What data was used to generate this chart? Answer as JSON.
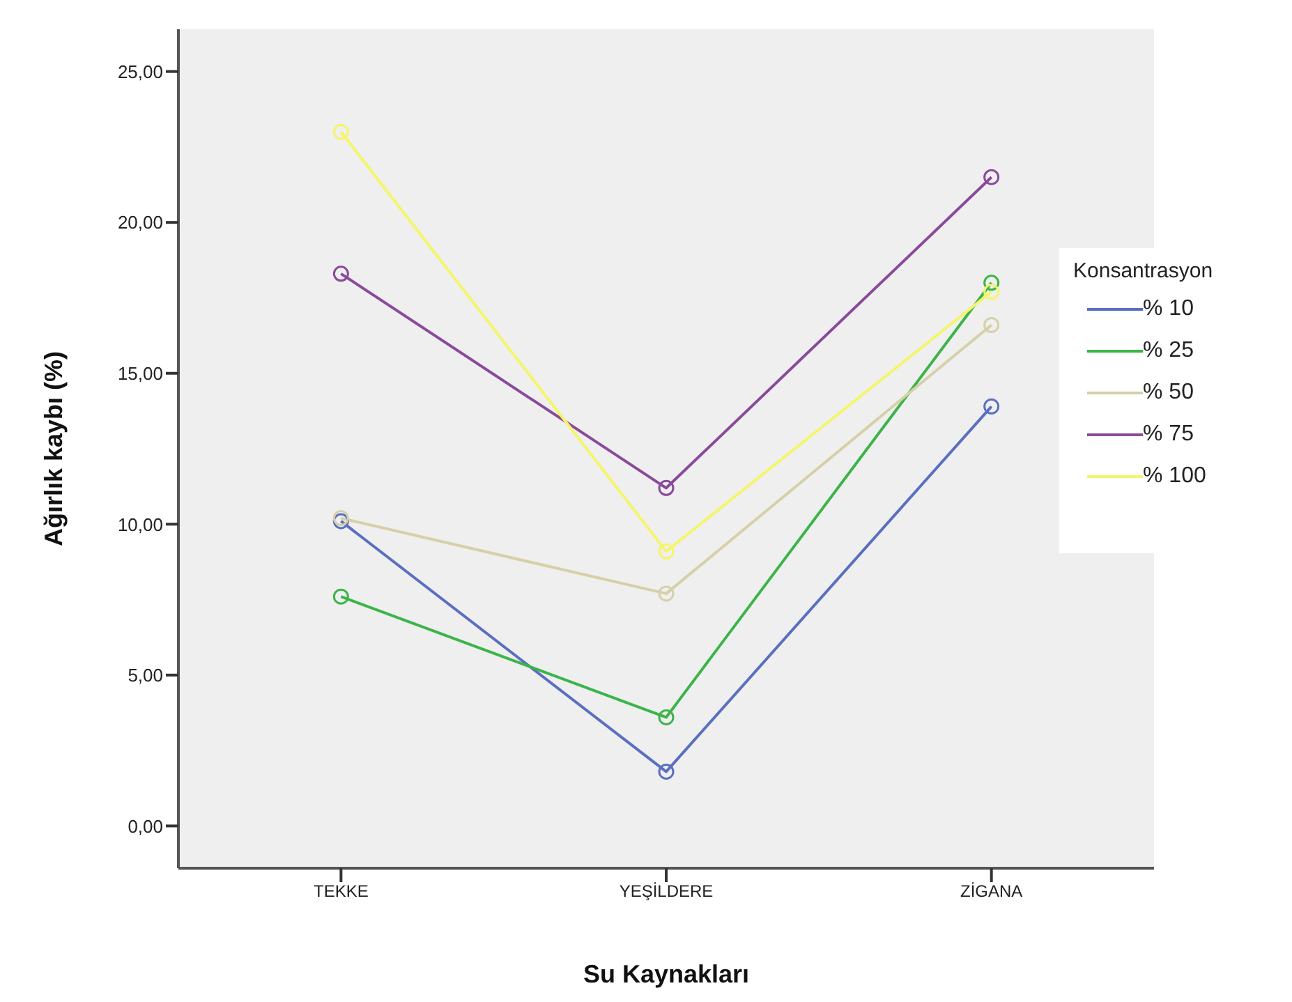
{
  "chart_data": {
    "type": "line",
    "xlabel": "Su Kaynakları",
    "ylabel": "Ağırlık kaybı (%)",
    "legend_title": "Konsantrasyon",
    "categories": [
      "TEKKE",
      "YEŞİLDERE",
      "ZİGANA"
    ],
    "series": [
      {
        "name": "% 10",
        "color": "#5a6fc0",
        "values": [
          10.1,
          1.8,
          13.9
        ]
      },
      {
        "name": "% 25",
        "color": "#3cb44a",
        "values": [
          7.6,
          3.6,
          18.0
        ]
      },
      {
        "name": "% 50",
        "color": "#d6d0a8",
        "values": [
          10.2,
          7.7,
          16.6
        ]
      },
      {
        "name": "% 75",
        "color": "#8a4a9a",
        "values": [
          18.3,
          11.2,
          21.5
        ]
      },
      {
        "name": "% 100",
        "color": "#f5f56a",
        "values": [
          23.0,
          9.1,
          17.7
        ]
      }
    ],
    "ylim": [
      -1.4,
      26.4
    ],
    "yticks": [
      {
        "value": 0,
        "label": "0,00"
      },
      {
        "value": 5,
        "label": "5,00"
      },
      {
        "value": 10,
        "label": "10,00"
      },
      {
        "value": 15,
        "label": "15,00"
      },
      {
        "value": 20,
        "label": "20,00"
      },
      {
        "value": 25,
        "label": "25,00"
      }
    ],
    "marker": "circle",
    "line_style": "solid",
    "legend": "right"
  }
}
